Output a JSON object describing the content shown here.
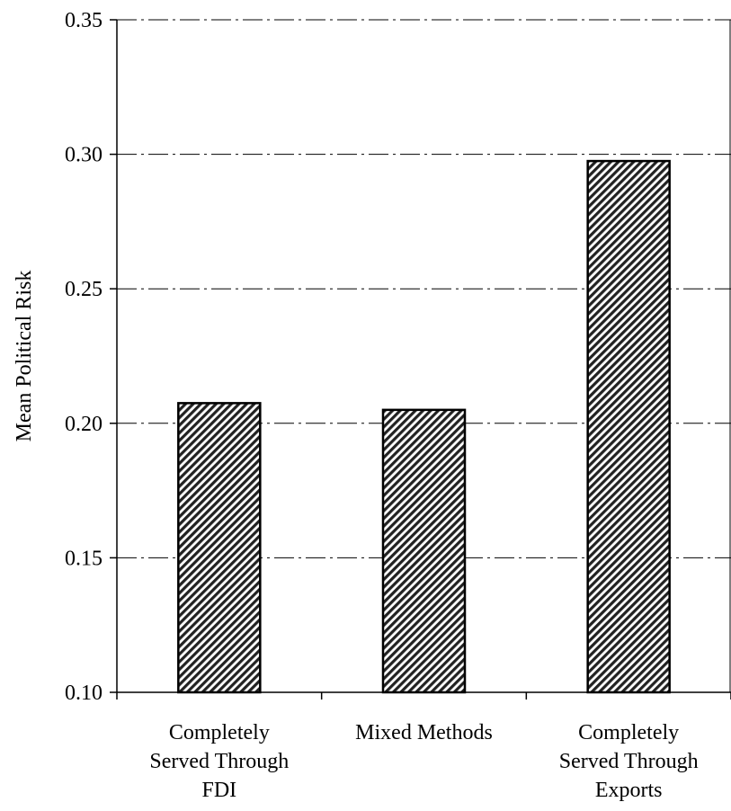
{
  "chart_data": {
    "type": "bar",
    "title": "",
    "xlabel": "",
    "ylabel": "Mean Political Risk",
    "ylim": [
      0.1,
      0.35
    ],
    "yticks": [
      "0.10",
      "0.15",
      "0.20",
      "0.25",
      "0.30",
      "0.35"
    ],
    "grid": "horizontal dash-dot lines",
    "legend": "none",
    "categories": [
      [
        "Completely",
        "Served Through",
        "FDI"
      ],
      [
        "Mixed Methods"
      ],
      [
        "Completely",
        "Served Through",
        "Exports"
      ]
    ],
    "values": [
      0.2075,
      0.205,
      0.2975
    ],
    "bar_fill": "diagonal hatch (dark gray stripes on white)",
    "colors": {
      "bar_stroke": "#000000",
      "hatch": "#000000",
      "grid": "#000000"
    }
  }
}
